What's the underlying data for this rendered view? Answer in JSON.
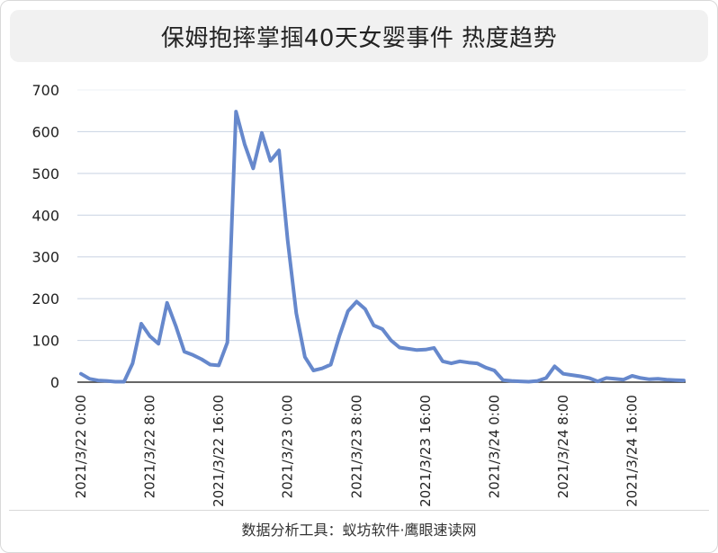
{
  "header": {
    "title": "保姆抱摔掌掴40天女婴事件 热度趋势"
  },
  "footer": {
    "source": "数据分析工具：蚁坊软件·鹰眼速读网"
  },
  "chart_data": {
    "type": "line",
    "title": "保姆抱摔掌掴40天女婴事件 热度趋势",
    "xlabel": "",
    "ylabel": "",
    "ylim": [
      0,
      700
    ],
    "yticks": [
      "0",
      "100",
      "200",
      "300",
      "400",
      "500",
      "600",
      "700"
    ],
    "xticks": [
      {
        "label": "2021/3/22 0:00",
        "index": 0
      },
      {
        "label": "2021/3/22 8:00",
        "index": 8
      },
      {
        "label": "2021/3/22 16:00",
        "index": 16
      },
      {
        "label": "2021/3/23 0:00",
        "index": 24
      },
      {
        "label": "2021/3/23 8:00",
        "index": 32
      },
      {
        "label": "2021/3/23 16:00",
        "index": 40
      },
      {
        "label": "2021/3/24 0:00",
        "index": 48
      },
      {
        "label": "2021/3/24 8:00",
        "index": 56
      },
      {
        "label": "2021/3/24 16:00",
        "index": 64
      }
    ],
    "grid": true,
    "legend": "none",
    "series_color": "#6688cc",
    "series": [
      {
        "values": [
          20,
          8,
          4,
          3,
          1,
          1,
          45,
          140,
          110,
          92,
          190,
          135,
          73,
          65,
          55,
          42,
          40,
          95,
          648,
          570,
          512,
          597,
          530,
          555,
          340,
          165,
          60,
          28,
          33,
          42,
          110,
          170,
          193,
          175,
          136,
          127,
          100,
          83,
          80,
          77,
          78,
          82,
          50,
          45,
          50,
          47,
          45,
          35,
          28,
          5,
          3,
          2,
          1,
          3,
          10,
          38,
          20,
          17,
          14,
          10,
          2,
          10,
          8,
          6,
          15,
          10,
          7,
          8,
          6,
          5,
          4
        ]
      }
    ]
  }
}
